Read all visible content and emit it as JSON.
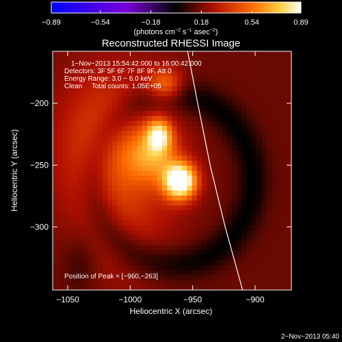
{
  "chart_data": {
    "type": "heatmap",
    "title": "Reconstructed RHESSI Image",
    "xlabel": "Heliocentric X (arcsec)",
    "ylabel": "Heliocentric Y (arcsec)",
    "xlim": [
      -1062,
      -871
    ],
    "ylim": [
      -351,
      -158
    ],
    "x_ticks": [
      -1050,
      -1000,
      -950,
      -900
    ],
    "y_ticks": [
      -200,
      -250,
      -300
    ],
    "x_tick_labels": [
      "−1050",
      "−1000",
      "−950",
      "−900"
    ],
    "y_tick_labels": [
      "−200",
      "−250",
      "−300"
    ],
    "colorbar": {
      "min": -0.89,
      "max": 0.89,
      "tick_values": [
        -0.89,
        -0.54,
        -0.18,
        0.18,
        0.54,
        0.89
      ],
      "tick_labels": [
        "−0.89",
        "−0.54",
        "−0.18",
        "0.18",
        "0.54",
        "0.89"
      ],
      "unit_prefix": "(photons cm",
      "unit_sup1": "−2",
      "unit_mid": " s",
      "unit_sup2": "−1",
      "unit_mid2": " asec",
      "unit_sup3": "−2",
      "unit_suffix": ")"
    },
    "annotations": [
      "1−Nov−2013 15:54:42.000 to 16:00:42.000",
      "Detectors: 3F 5F 6F 7F 8F 9F, Att 0",
      "Energy Range: 3.0 − 6.0 keV",
      "Clean     Total counts: 1.05E+05"
    ],
    "peak_label": "Position of Peak = [−960,−263]",
    "sources": [
      {
        "x": -960,
        "y": -263,
        "value": 0.89,
        "sigma_x": 9,
        "sigma_y": 10
      },
      {
        "x": -977,
        "y": -226,
        "value": 0.55,
        "sigma_x": 7,
        "sigma_y": 9
      },
      {
        "x": -972,
        "y": -185,
        "value": 0.35,
        "sigma_x": 10,
        "sigma_y": 9
      },
      {
        "x": -982,
        "y": -243,
        "value": 0.32,
        "sigma_x": 14,
        "sigma_y": 14
      },
      {
        "x": -1005,
        "y": -255,
        "value": 0.22,
        "sigma_x": 30,
        "sigma_y": 55
      },
      {
        "x": -1030,
        "y": -230,
        "value": 0.12,
        "sigma_x": 25,
        "sigma_y": 40
      }
    ],
    "limb": [
      [
        -954,
        -158
      ],
      [
        -946,
        -200
      ],
      [
        -936,
        -250
      ],
      [
        -924,
        -300
      ],
      [
        -910,
        -351
      ]
    ]
  },
  "timestamp": "2−Nov−2013 05:40"
}
